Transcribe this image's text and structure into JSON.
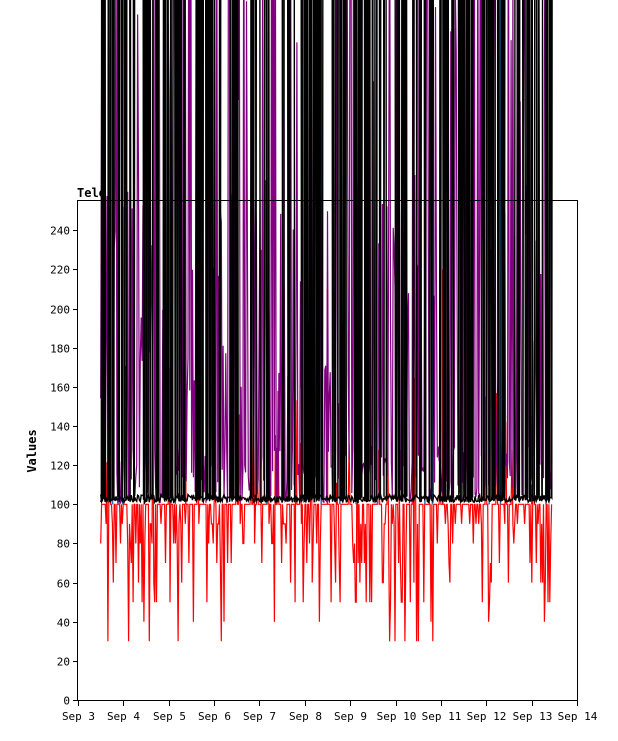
{
  "chart_data": {
    "type": "line",
    "title": "Tele",
    "ylabel": "Values",
    "xlabel": "",
    "ylim": [
      0,
      255
    ],
    "y_ticks": [
      0,
      20,
      40,
      60,
      80,
      100,
      120,
      140,
      160,
      180,
      200,
      220,
      240
    ],
    "x_ticks": [
      "Sep 3",
      "Sep 4",
      "Sep 5",
      "Sep 6",
      "Sep 7",
      "Sep 8",
      "Sep 9",
      "Sep 10",
      "Sep 11",
      "Sep 12",
      "Sep 13",
      "Sep 14"
    ],
    "xlim": [
      "Sep 3",
      "Sep 14"
    ],
    "grid": false,
    "series": [
      {
        "color": "#ff0000",
        "x_start": "Sep 3 12:00",
        "x_end": "Sep 13 11:00",
        "min": 30,
        "typical_low": 50,
        "baseline": 100,
        "spikes": [
          {
            "x": "Sep 4 11:00",
            "y": 210
          },
          {
            "x": "Sep 5 09:00",
            "y": 210
          },
          {
            "x": "Sep 7 01:00",
            "y": 230
          },
          {
            "x": "Sep 8 12:00",
            "y": 210
          },
          {
            "x": "Sep 10 02:00",
            "y": 240
          },
          {
            "x": "Sep 11 01:00",
            "y": 220
          },
          {
            "x": "Sep 13 00:00",
            "y": 110
          }
        ]
      },
      {
        "color": "#800080",
        "x_start": "Sep 3 12:00",
        "x_end": "Sep 13 11:00",
        "min": 100,
        "typical_high": 255
      },
      {
        "color": "#1e73be",
        "x_start": "Sep 3 12:00",
        "x_end": "Sep 13 11:00",
        "min": 100,
        "typical_high": 255
      },
      {
        "color": "#000000",
        "x_start": "Sep 3 12:00",
        "x_end": "Sep 13 11:00",
        "min": 101,
        "typical_high": 255
      }
    ]
  }
}
